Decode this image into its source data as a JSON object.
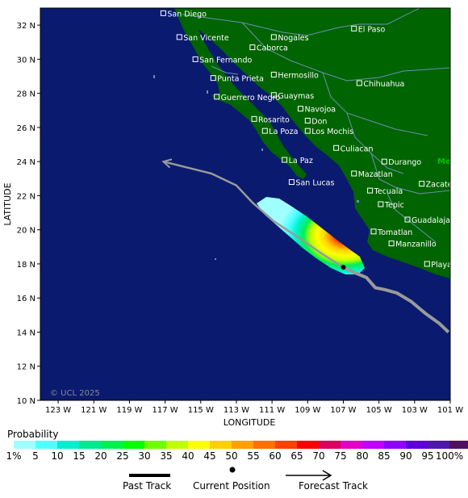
{
  "map": {
    "copyright": "© UCL 2025",
    "x_axis_title": "LONGITUDE",
    "y_axis_title": "LATITUDE",
    "lat_ticks": [
      "32 N",
      "30 N",
      "28 N",
      "26 N",
      "24 N",
      "22 N",
      "20 N",
      "18 N",
      "16 N",
      "14 N",
      "12 N",
      "10 N"
    ],
    "lon_ticks": [
      "123 W",
      "121 W",
      "119 W",
      "117 W",
      "115 W",
      "113 W",
      "111 W",
      "109 W",
      "107 W",
      "105 W",
      "103 W",
      "101 W"
    ],
    "colors": {
      "ocean": "#0a1a6e",
      "land": "#006400",
      "border": "#6f8fb0",
      "track": "#9a9a9a"
    },
    "cities": [
      {
        "name": "San Diego",
        "lon": -117.1,
        "lat": 32.7
      },
      {
        "name": "San Vicente",
        "lon": -116.2,
        "lat": 31.3
      },
      {
        "name": "Caborca",
        "lon": -112.1,
        "lat": 30.7
      },
      {
        "name": "Nogales",
        "lon": -110.9,
        "lat": 31.3
      },
      {
        "name": "El Paso",
        "lon": -106.4,
        "lat": 31.8
      },
      {
        "name": "San Fernando",
        "lon": -115.3,
        "lat": 30.0
      },
      {
        "name": "Punta Prieta",
        "lon": -114.3,
        "lat": 28.9
      },
      {
        "name": "Hermosillo",
        "lon": -110.9,
        "lat": 29.1
      },
      {
        "name": "Chihuahua",
        "lon": -106.1,
        "lat": 28.6
      },
      {
        "name": "Guaymas",
        "lon": -110.9,
        "lat": 27.9
      },
      {
        "name": "Guerrero Negro",
        "lon": -114.1,
        "lat": 27.8
      },
      {
        "name": "Navojoa",
        "lon": -109.4,
        "lat": 27.1
      },
      {
        "name": "Rosarito",
        "lon": -112.0,
        "lat": 26.5
      },
      {
        "name": "Don",
        "lon": -109.0,
        "lat": 26.4
      },
      {
        "name": "La Poza",
        "lon": -111.4,
        "lat": 25.8
      },
      {
        "name": "Los Mochis",
        "lon": -109.0,
        "lat": 25.8
      },
      {
        "name": "Culiacan",
        "lon": -107.4,
        "lat": 24.8
      },
      {
        "name": "La Paz",
        "lon": -110.3,
        "lat": 24.1
      },
      {
        "name": "Durango",
        "lon": -104.7,
        "lat": 24.0
      },
      {
        "name": "Mazatlan",
        "lon": -106.4,
        "lat": 23.3
      },
      {
        "name": "San Lucas",
        "lon": -109.9,
        "lat": 22.8
      },
      {
        "name": "Zacatecas",
        "lon": -102.6,
        "lat": 22.7
      },
      {
        "name": "Tecuala",
        "lon": -105.5,
        "lat": 22.3
      },
      {
        "name": "Tepic",
        "lon": -104.9,
        "lat": 21.5
      },
      {
        "name": "Guadalajara",
        "lon": -103.4,
        "lat": 20.6
      },
      {
        "name": "Tomatlan",
        "lon": -105.3,
        "lat": 19.9
      },
      {
        "name": "Manzanillo",
        "lon": -104.3,
        "lat": 19.2
      },
      {
        "name": "Playa Azul",
        "lon": -102.3,
        "lat": 18.0
      }
    ],
    "partial_label": "Me",
    "past_track": [
      [
        -101.1,
        14.0
      ],
      [
        -101.6,
        14.5
      ],
      [
        -102.4,
        15.1
      ],
      [
        -103.2,
        15.8
      ],
      [
        -104.0,
        16.3
      ],
      [
        -104.7,
        16.5
      ],
      [
        -105.2,
        16.6
      ],
      [
        -105.7,
        17.2
      ],
      [
        -106.4,
        17.5
      ],
      [
        -107.0,
        17.8
      ]
    ],
    "forecast_track": [
      [
        -107.0,
        17.8
      ],
      [
        -108.2,
        18.6
      ],
      [
        -109.6,
        19.6
      ],
      [
        -110.9,
        20.5
      ],
      [
        -112.1,
        21.6
      ],
      [
        -113.0,
        22.6
      ],
      [
        -114.4,
        23.3
      ],
      [
        -117.1,
        24.0
      ]
    ],
    "current_position": {
      "lon": -107.0,
      "lat": 17.8
    }
  },
  "legend": {
    "title": "Probability",
    "labels": [
      "1%",
      "5",
      "10",
      "15",
      "20",
      "25",
      "30",
      "35",
      "40",
      "45",
      "50",
      "55",
      "60",
      "65",
      "70",
      "75",
      "80",
      "85",
      "90",
      "95",
      "100%"
    ],
    "colors": [
      "#a0ffff",
      "#50ffff",
      "#00f0d0",
      "#00e890",
      "#00f050",
      "#00ff00",
      "#70ff00",
      "#c0ff00",
      "#ffff00",
      "#ffd000",
      "#ffa000",
      "#ff7000",
      "#ff4000",
      "#ff0000",
      "#d80060",
      "#e000c8",
      "#c000ff",
      "#9000ff",
      "#6000d8",
      "#5018a8",
      "#501060"
    ]
  },
  "key": {
    "past_track": "Past Track",
    "current_position": "Current Position",
    "forecast_track": "Forecast Track"
  }
}
